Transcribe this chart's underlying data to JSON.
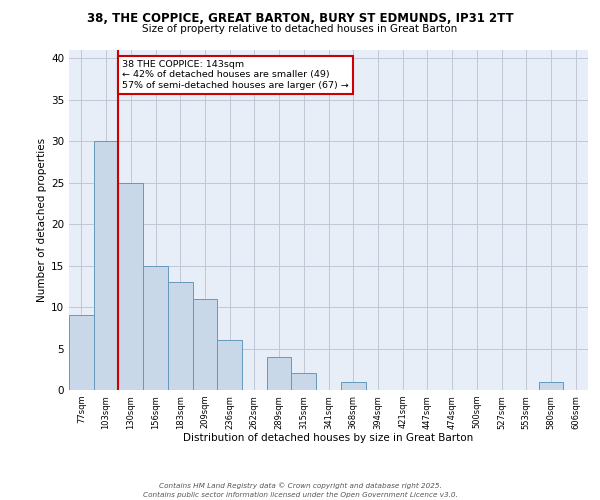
{
  "title_line1": "38, THE COPPICE, GREAT BARTON, BURY ST EDMUNDS, IP31 2TT",
  "title_line2": "Size of property relative to detached houses in Great Barton",
  "xlabel": "Distribution of detached houses by size in Great Barton",
  "ylabel": "Number of detached properties",
  "categories": [
    "77sqm",
    "103sqm",
    "130sqm",
    "156sqm",
    "183sqm",
    "209sqm",
    "236sqm",
    "262sqm",
    "289sqm",
    "315sqm",
    "341sqm",
    "368sqm",
    "394sqm",
    "421sqm",
    "447sqm",
    "474sqm",
    "500sqm",
    "527sqm",
    "553sqm",
    "580sqm",
    "606sqm"
  ],
  "values": [
    9,
    30,
    25,
    15,
    13,
    11,
    6,
    0,
    4,
    2,
    0,
    1,
    0,
    0,
    0,
    0,
    0,
    0,
    0,
    1,
    0
  ],
  "bar_color": "#c8d8e8",
  "bar_edge_color": "#6699bb",
  "marker_index": 2,
  "marker_color": "#cc0000",
  "ylim": [
    0,
    41
  ],
  "yticks": [
    0,
    5,
    10,
    15,
    20,
    25,
    30,
    35,
    40
  ],
  "annotation_text": "38 THE COPPICE: 143sqm\n← 42% of detached houses are smaller (49)\n57% of semi-detached houses are larger (67) →",
  "annotation_box_color": "#ffffff",
  "annotation_box_edge": "#cc0000",
  "footer": "Contains HM Land Registry data © Crown copyright and database right 2025.\nContains public sector information licensed under the Open Government Licence v3.0.",
  "bg_color": "#e8eef8",
  "grid_color": "#c0c8d8"
}
